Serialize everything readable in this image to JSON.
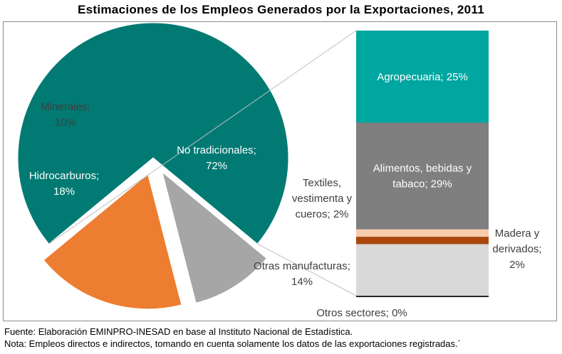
{
  "title": "Estimaciones  de los Empleos  Generados por la Exportaciones,  2011",
  "footer": {
    "source": "Fuente:  Elaboración EMINPRO-INESAD en base  al Instituto  Nacional de Estadística.",
    "note": "Nota: Empleos directos e indirectos, tomando  en cuenta solamente los datos de las exportaciones registradas.´"
  },
  "chart_data": [
    {
      "type": "pie",
      "slices": [
        {
          "label_lines": [
            "No tradicionales;",
            "72%"
          ],
          "value": 72,
          "color": "#007a73",
          "text_color": "#ffffff",
          "exploded": false
        },
        {
          "label_lines": [
            "Hidrocarburos;",
            "18%"
          ],
          "value": 18,
          "color": "#ed7d31",
          "text_color": "#ffffff",
          "exploded": true
        },
        {
          "label_lines": [
            "Minerales;",
            "10%"
          ],
          "value": 10,
          "color": "#a6a6a6",
          "text_color": "#3f3f3f",
          "exploded": true
        }
      ]
    },
    {
      "type": "bar",
      "stacked": true,
      "segments": [
        {
          "label_lines": [
            "Agropecuaria; 25%"
          ],
          "value": 25,
          "color": "#00a6a0",
          "text_color": "#ffffff"
        },
        {
          "label_lines": [
            "Alimentos,  bebidas y",
            "tabaco; 29%"
          ],
          "value": 29,
          "color": "#7f7f7f",
          "text_color": "#ffffff"
        },
        {
          "label_lines": [
            "Textiles,",
            "vestimenta  y",
            "cueros; 2%"
          ],
          "value": 2,
          "color": "#f8cbad",
          "text_color": "#3f3f3f"
        },
        {
          "label_lines": [
            "Madera y",
            "derivados;",
            "2%"
          ],
          "value": 2,
          "color": "#a9470d",
          "text_color": "#3f3f3f"
        },
        {
          "label_lines": [
            "Otras manufacturas;",
            "14%"
          ],
          "value": 14,
          "color": "#d9d9d9",
          "text_color": "#3f3f3f"
        },
        {
          "label_lines": [
            "Otros sectores; 0%"
          ],
          "value": 0,
          "color": "#262626",
          "text_color": "#3f3f3f"
        }
      ]
    }
  ]
}
